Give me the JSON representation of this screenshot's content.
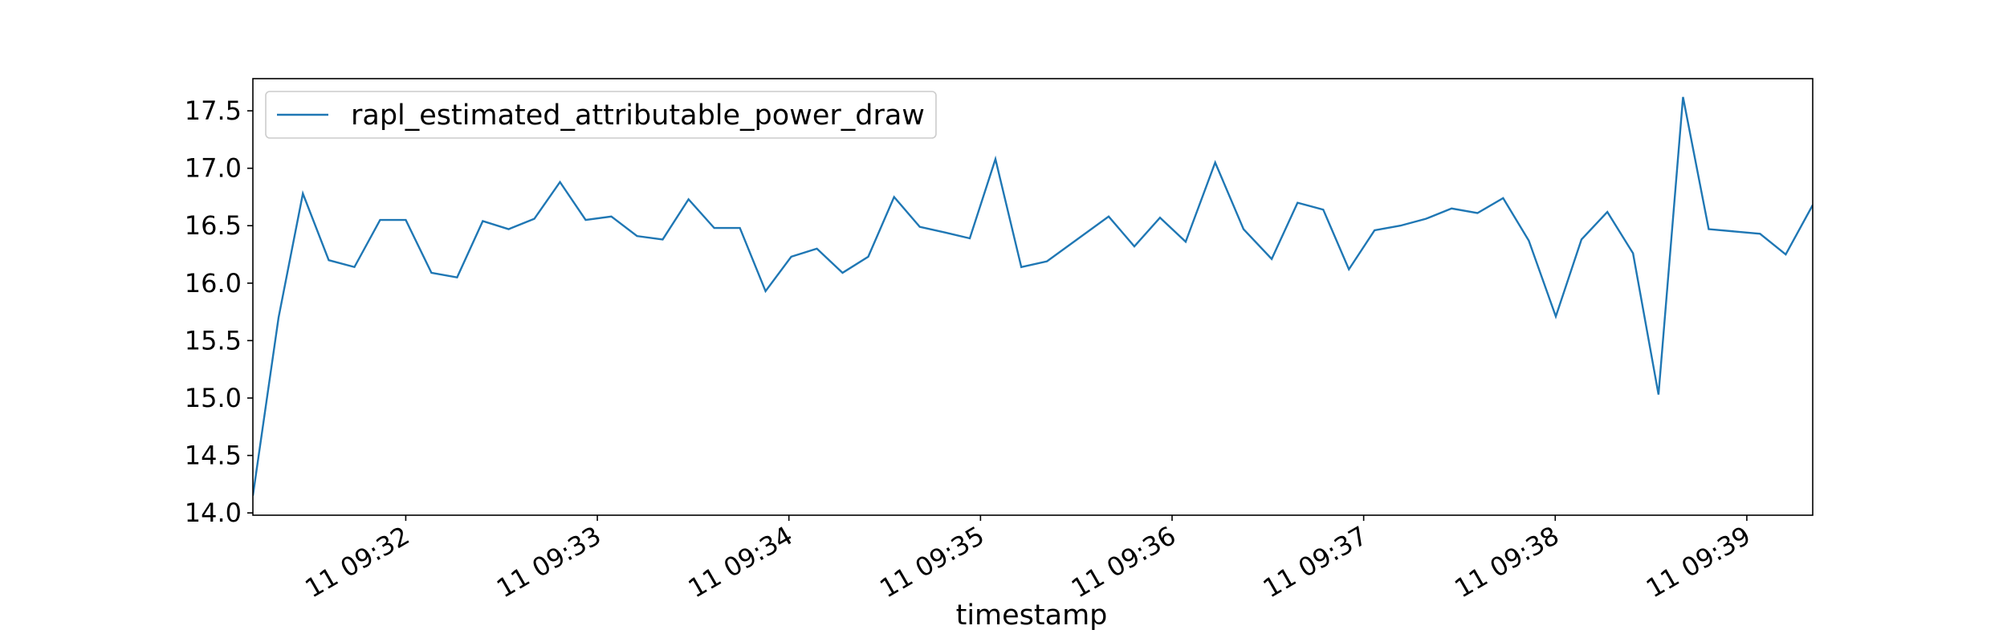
{
  "chart_data": {
    "type": "line",
    "x_label": "timestamp",
    "legend": "upper left",
    "x": [
      31.202,
      31.336,
      31.463,
      31.598,
      31.732,
      31.866,
      32.0,
      32.134,
      32.268,
      32.402,
      32.537,
      32.671,
      32.805,
      32.939,
      33.073,
      33.207,
      33.341,
      33.476,
      33.61,
      33.744,
      33.878,
      34.012,
      34.146,
      34.28,
      34.414,
      34.549,
      34.683,
      34.817,
      34.944,
      35.078,
      35.213,
      35.347,
      35.669,
      35.803,
      35.937,
      36.071,
      36.225,
      36.373,
      36.52,
      36.655,
      36.789,
      36.923,
      37.057,
      37.191,
      37.325,
      37.459,
      37.594,
      37.728,
      37.862,
      38.003,
      38.137,
      38.272,
      38.406,
      38.539,
      38.667,
      38.801,
      38.935,
      39.069,
      39.203,
      39.344
    ],
    "series": [
      {
        "name": "rapl_estimated_attributable_power_draw",
        "color": "#1f77b4",
        "values": [
          14.15,
          15.7,
          16.78,
          16.2,
          16.14,
          16.55,
          16.55,
          16.09,
          16.05,
          16.54,
          16.47,
          16.56,
          16.88,
          16.55,
          16.58,
          16.41,
          16.38,
          16.73,
          16.48,
          16.48,
          15.93,
          16.23,
          16.3,
          16.09,
          16.23,
          16.75,
          16.49,
          16.44,
          16.39,
          17.08,
          16.14,
          16.19,
          16.58,
          16.32,
          16.57,
          16.36,
          17.05,
          16.47,
          16.21,
          16.7,
          16.64,
          16.12,
          16.46,
          16.5,
          16.56,
          16.65,
          16.61,
          16.74,
          16.37,
          15.71,
          16.38,
          16.62,
          16.26,
          15.03,
          17.62,
          16.47,
          16.45,
          16.43,
          16.25,
          16.68
        ]
      }
    ],
    "xlim": [
      31.202,
      39.344
    ],
    "xticks": [
      {
        "value": 32,
        "label": "11 09:32"
      },
      {
        "value": 33,
        "label": "11 09:33"
      },
      {
        "value": 34,
        "label": "11 09:34"
      },
      {
        "value": 35,
        "label": "11 09:35"
      },
      {
        "value": 36,
        "label": "11 09:36"
      },
      {
        "value": 37,
        "label": "11 09:37"
      },
      {
        "value": 38,
        "label": "11 09:38"
      },
      {
        "value": 39,
        "label": "11 09:39"
      }
    ],
    "ylim": [
      13.98,
      17.78
    ],
    "yticks": [
      {
        "value": 14,
        "label": "14.0"
      },
      14.5,
      {
        "value": 15,
        "label": "15.0"
      },
      15.5,
      {
        "value": 16,
        "label": "16.0"
      },
      16.5,
      {
        "value": 17,
        "label": "17.0"
      },
      17.5
    ]
  }
}
